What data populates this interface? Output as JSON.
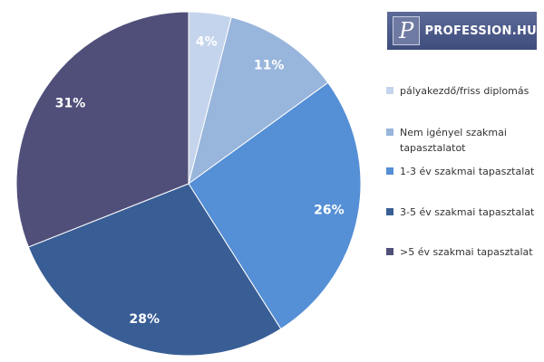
{
  "logo": {
    "icon": "P",
    "text": "PROFESSION.HU"
  },
  "chart_data": {
    "type": "pie",
    "categories": [
      "pályakezdő/friss diplomás",
      "Nem igényel szakmai tapasztalatot",
      "1-3 év szakmai tapasztalat",
      "3-5 év szakmai tapasztalat",
      ">5 év szakmai tapasztalat"
    ],
    "values": [
      4,
      11,
      26,
      28,
      31
    ],
    "value_labels": [
      "4%",
      "11%",
      "26%",
      "28%",
      "31%"
    ],
    "colors": [
      "#c4d4ec",
      "#98b5dc",
      "#558fd6",
      "#395e95",
      "#504f7a"
    ]
  }
}
